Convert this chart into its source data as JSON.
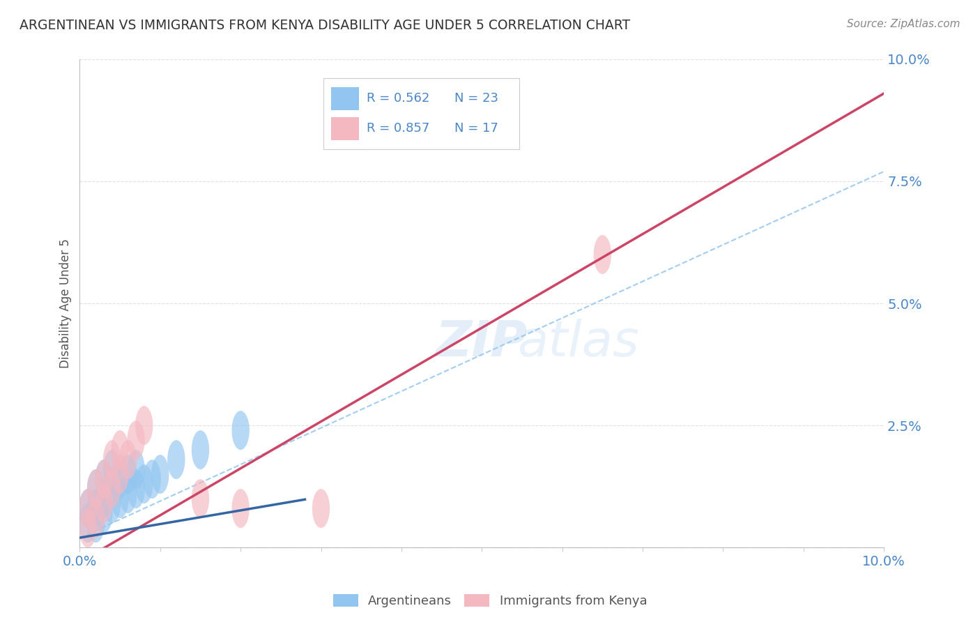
{
  "title": "ARGENTINEAN VS IMMIGRANTS FROM KENYA DISABILITY AGE UNDER 5 CORRELATION CHART",
  "source": "Source: ZipAtlas.com",
  "ylabel": "Disability Age Under 5",
  "xmin": 0.0,
  "xmax": 0.1,
  "ymin": 0.0,
  "ymax": 0.1,
  "blue_color": "#92c5f0",
  "pink_color": "#f4b8c1",
  "blue_line_color": "#3465a4",
  "pink_line_color": "#cc4466",
  "dashed_line_color": "#92c5f0",
  "background_color": "#ffffff",
  "grid_color": "#cccccc",
  "title_color": "#333333",
  "axis_label_color": "#4a86c8",
  "source_color": "#888888",
  "arg_x": [
    0.001,
    0.001,
    0.002,
    0.002,
    0.002,
    0.003,
    0.003,
    0.003,
    0.004,
    0.004,
    0.004,
    0.005,
    0.005,
    0.006,
    0.006,
    0.007,
    0.007,
    0.008,
    0.009,
    0.01,
    0.012,
    0.015,
    0.02
  ],
  "arg_y": [
    0.005,
    0.008,
    0.005,
    0.008,
    0.012,
    0.007,
    0.01,
    0.014,
    0.009,
    0.012,
    0.016,
    0.01,
    0.014,
    0.011,
    0.015,
    0.012,
    0.016,
    0.013,
    0.014,
    0.015,
    0.018,
    0.02,
    0.024
  ],
  "ken_x": [
    0.001,
    0.001,
    0.002,
    0.002,
    0.003,
    0.003,
    0.004,
    0.004,
    0.005,
    0.005,
    0.006,
    0.007,
    0.008,
    0.015,
    0.02,
    0.03,
    0.065
  ],
  "ken_y": [
    0.004,
    0.008,
    0.006,
    0.012,
    0.009,
    0.014,
    0.012,
    0.018,
    0.015,
    0.02,
    0.018,
    0.022,
    0.025,
    0.01,
    0.008,
    0.008,
    0.06
  ],
  "pink_slope": 0.96,
  "pink_intercept": -0.003,
  "blue_slope": 0.28,
  "blue_intercept": 0.002,
  "blue_line_xmax": 0.028,
  "zipcode_watermark": "ZIPatlas",
  "legend_items": [
    {
      "label": "R = 0.562   N = 23",
      "color": "#92c5f0"
    },
    {
      "label": "R = 0.857   N = 17",
      "color": "#f4b8c1"
    }
  ]
}
